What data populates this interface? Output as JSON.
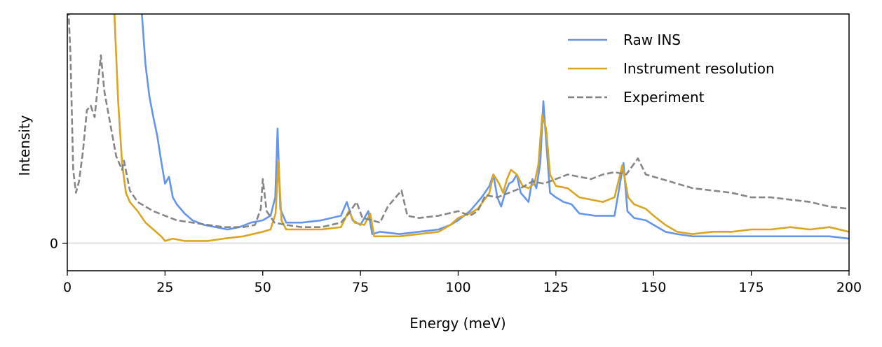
{
  "chart_data": {
    "type": "line",
    "title": "",
    "xlabel": "Energy (meV)",
    "ylabel": "Intensity",
    "xlim": [
      0,
      200
    ],
    "ylim": [
      -0.12,
      1.0
    ],
    "xticks": [
      0,
      25,
      50,
      75,
      100,
      125,
      150,
      175,
      200
    ],
    "xtick_labels": [
      "0",
      "25",
      "50",
      "75",
      "100",
      "125",
      "150",
      "175",
      "200"
    ],
    "yticks": [
      0
    ],
    "ytick_labels": [
      "0"
    ],
    "zero_line": true,
    "legend_position": "top-right",
    "series": [
      {
        "name": "Raw INS",
        "color": "#6495ED",
        "style": "solid",
        "points": [
          [
            19,
            1.02
          ],
          [
            20,
            0.78
          ],
          [
            21,
            0.64
          ],
          [
            22,
            0.55
          ],
          [
            23,
            0.47
          ],
          [
            24,
            0.36
          ],
          [
            25,
            0.26
          ],
          [
            26,
            0.29
          ],
          [
            27,
            0.2
          ],
          [
            28,
            0.17
          ],
          [
            30,
            0.13
          ],
          [
            32,
            0.1
          ],
          [
            35,
            0.08
          ],
          [
            38,
            0.07
          ],
          [
            41,
            0.06
          ],
          [
            44,
            0.07
          ],
          [
            47,
            0.09
          ],
          [
            50,
            0.1
          ],
          [
            52,
            0.12
          ],
          [
            53.2,
            0.2
          ],
          [
            53.8,
            0.5
          ],
          [
            54.5,
            0.15
          ],
          [
            56,
            0.09
          ],
          [
            60,
            0.09
          ],
          [
            65,
            0.1
          ],
          [
            70,
            0.12
          ],
          [
            71.5,
            0.18
          ],
          [
            73,
            0.1
          ],
          [
            75,
            0.08
          ],
          [
            77,
            0.14
          ],
          [
            78,
            0.04
          ],
          [
            80,
            0.05
          ],
          [
            85,
            0.04
          ],
          [
            90,
            0.05
          ],
          [
            95,
            0.06
          ],
          [
            98,
            0.08
          ],
          [
            100,
            0.1
          ],
          [
            103,
            0.14
          ],
          [
            106,
            0.2
          ],
          [
            108,
            0.25
          ],
          [
            109,
            0.3
          ],
          [
            110,
            0.2
          ],
          [
            111,
            0.16
          ],
          [
            112,
            0.22
          ],
          [
            113,
            0.26
          ],
          [
            114,
            0.27
          ],
          [
            115,
            0.3
          ],
          [
            116,
            0.22
          ],
          [
            117,
            0.2
          ],
          [
            118,
            0.18
          ],
          [
            119,
            0.28
          ],
          [
            120,
            0.24
          ],
          [
            121,
            0.35
          ],
          [
            121.8,
            0.62
          ],
          [
            122.5,
            0.45
          ],
          [
            123.5,
            0.22
          ],
          [
            125,
            0.2
          ],
          [
            127,
            0.18
          ],
          [
            129,
            0.17
          ],
          [
            131,
            0.13
          ],
          [
            135,
            0.12
          ],
          [
            140,
            0.12
          ],
          [
            142.3,
            0.35
          ],
          [
            143.3,
            0.14
          ],
          [
            145,
            0.11
          ],
          [
            148,
            0.1
          ],
          [
            150,
            0.08
          ],
          [
            153,
            0.05
          ],
          [
            156,
            0.04
          ],
          [
            160,
            0.03
          ],
          [
            165,
            0.03
          ],
          [
            170,
            0.03
          ],
          [
            175,
            0.03
          ],
          [
            180,
            0.03
          ],
          [
            185,
            0.03
          ],
          [
            190,
            0.03
          ],
          [
            195,
            0.03
          ],
          [
            200,
            0.02
          ]
        ]
      },
      {
        "name": "Instrument resolution",
        "color": "#DAA520",
        "style": "solid",
        "points": [
          [
            12,
            1.02
          ],
          [
            13,
            0.62
          ],
          [
            14,
            0.35
          ],
          [
            15,
            0.22
          ],
          [
            16,
            0.18
          ],
          [
            18,
            0.14
          ],
          [
            20,
            0.09
          ],
          [
            22,
            0.06
          ],
          [
            24,
            0.03
          ],
          [
            25,
            0.01
          ],
          [
            27,
            0.02
          ],
          [
            30,
            0.01
          ],
          [
            33,
            0.01
          ],
          [
            36,
            0.01
          ],
          [
            40,
            0.02
          ],
          [
            45,
            0.03
          ],
          [
            50,
            0.05
          ],
          [
            52,
            0.06
          ],
          [
            53.3,
            0.13
          ],
          [
            54,
            0.36
          ],
          [
            54.8,
            0.1
          ],
          [
            56,
            0.06
          ],
          [
            60,
            0.06
          ],
          [
            65,
            0.06
          ],
          [
            70,
            0.07
          ],
          [
            72,
            0.14
          ],
          [
            73.5,
            0.09
          ],
          [
            76,
            0.08
          ],
          [
            77.5,
            0.13
          ],
          [
            78.5,
            0.03
          ],
          [
            80,
            0.03
          ],
          [
            85,
            0.03
          ],
          [
            90,
            0.04
          ],
          [
            95,
            0.05
          ],
          [
            98,
            0.08
          ],
          [
            100,
            0.11
          ],
          [
            103,
            0.13
          ],
          [
            105,
            0.15
          ],
          [
            108,
            0.22
          ],
          [
            109,
            0.3
          ],
          [
            110.5,
            0.26
          ],
          [
            111.5,
            0.22
          ],
          [
            112.5,
            0.28
          ],
          [
            113.5,
            0.32
          ],
          [
            115,
            0.3
          ],
          [
            116.5,
            0.25
          ],
          [
            118,
            0.24
          ],
          [
            119.5,
            0.26
          ],
          [
            120.5,
            0.34
          ],
          [
            121.5,
            0.56
          ],
          [
            122.5,
            0.5
          ],
          [
            123.5,
            0.3
          ],
          [
            125,
            0.25
          ],
          [
            128,
            0.24
          ],
          [
            131,
            0.2
          ],
          [
            134,
            0.19
          ],
          [
            137,
            0.18
          ],
          [
            140,
            0.2
          ],
          [
            142,
            0.34
          ],
          [
            143.5,
            0.2
          ],
          [
            145,
            0.17
          ],
          [
            148,
            0.15
          ],
          [
            150,
            0.12
          ],
          [
            153,
            0.08
          ],
          [
            156,
            0.05
          ],
          [
            160,
            0.04
          ],
          [
            165,
            0.05
          ],
          [
            170,
            0.05
          ],
          [
            175,
            0.06
          ],
          [
            180,
            0.06
          ],
          [
            185,
            0.07
          ],
          [
            190,
            0.06
          ],
          [
            195,
            0.07
          ],
          [
            200,
            0.05
          ]
        ]
      },
      {
        "name": "Experiment",
        "color": "#808080",
        "style": "dashed",
        "points": [
          [
            0.3,
            1.02
          ],
          [
            0.8,
            0.82
          ],
          [
            1.5,
            0.32
          ],
          [
            2.2,
            0.22
          ],
          [
            3,
            0.27
          ],
          [
            4,
            0.4
          ],
          [
            5,
            0.58
          ],
          [
            6,
            0.6
          ],
          [
            7,
            0.55
          ],
          [
            8,
            0.72
          ],
          [
            8.6,
            0.82
          ],
          [
            9.5,
            0.66
          ],
          [
            11,
            0.52
          ],
          [
            12.5,
            0.38
          ],
          [
            14,
            0.32
          ],
          [
            14.5,
            0.36
          ],
          [
            16,
            0.23
          ],
          [
            18,
            0.18
          ],
          [
            20,
            0.16
          ],
          [
            22,
            0.14
          ],
          [
            25,
            0.12
          ],
          [
            28,
            0.1
          ],
          [
            32,
            0.09
          ],
          [
            36,
            0.08
          ],
          [
            40,
            0.07
          ],
          [
            45,
            0.07
          ],
          [
            48,
            0.08
          ],
          [
            49.5,
            0.15
          ],
          [
            50,
            0.28
          ],
          [
            51,
            0.14
          ],
          [
            53,
            0.09
          ],
          [
            56,
            0.08
          ],
          [
            60,
            0.07
          ],
          [
            65,
            0.07
          ],
          [
            70,
            0.09
          ],
          [
            72,
            0.13
          ],
          [
            74,
            0.18
          ],
          [
            75.5,
            0.11
          ],
          [
            78,
            0.1
          ],
          [
            80,
            0.09
          ],
          [
            82,
            0.16
          ],
          [
            84,
            0.2
          ],
          [
            85.5,
            0.23
          ],
          [
            87,
            0.12
          ],
          [
            90,
            0.11
          ],
          [
            95,
            0.12
          ],
          [
            100,
            0.14
          ],
          [
            103,
            0.12
          ],
          [
            105,
            0.14
          ],
          [
            107,
            0.21
          ],
          [
            110,
            0.2
          ],
          [
            113,
            0.22
          ],
          [
            116,
            0.24
          ],
          [
            119,
            0.27
          ],
          [
            122,
            0.26
          ],
          [
            125,
            0.28
          ],
          [
            128,
            0.3
          ],
          [
            131,
            0.29
          ],
          [
            134,
            0.28
          ],
          [
            137,
            0.3
          ],
          [
            140,
            0.31
          ],
          [
            143,
            0.3
          ],
          [
            146,
            0.37
          ],
          [
            148,
            0.3
          ],
          [
            152,
            0.28
          ],
          [
            156,
            0.26
          ],
          [
            160,
            0.24
          ],
          [
            165,
            0.23
          ],
          [
            170,
            0.22
          ],
          [
            175,
            0.2
          ],
          [
            180,
            0.2
          ],
          [
            185,
            0.19
          ],
          [
            190,
            0.18
          ],
          [
            195,
            0.16
          ],
          [
            200,
            0.15
          ]
        ]
      }
    ]
  }
}
